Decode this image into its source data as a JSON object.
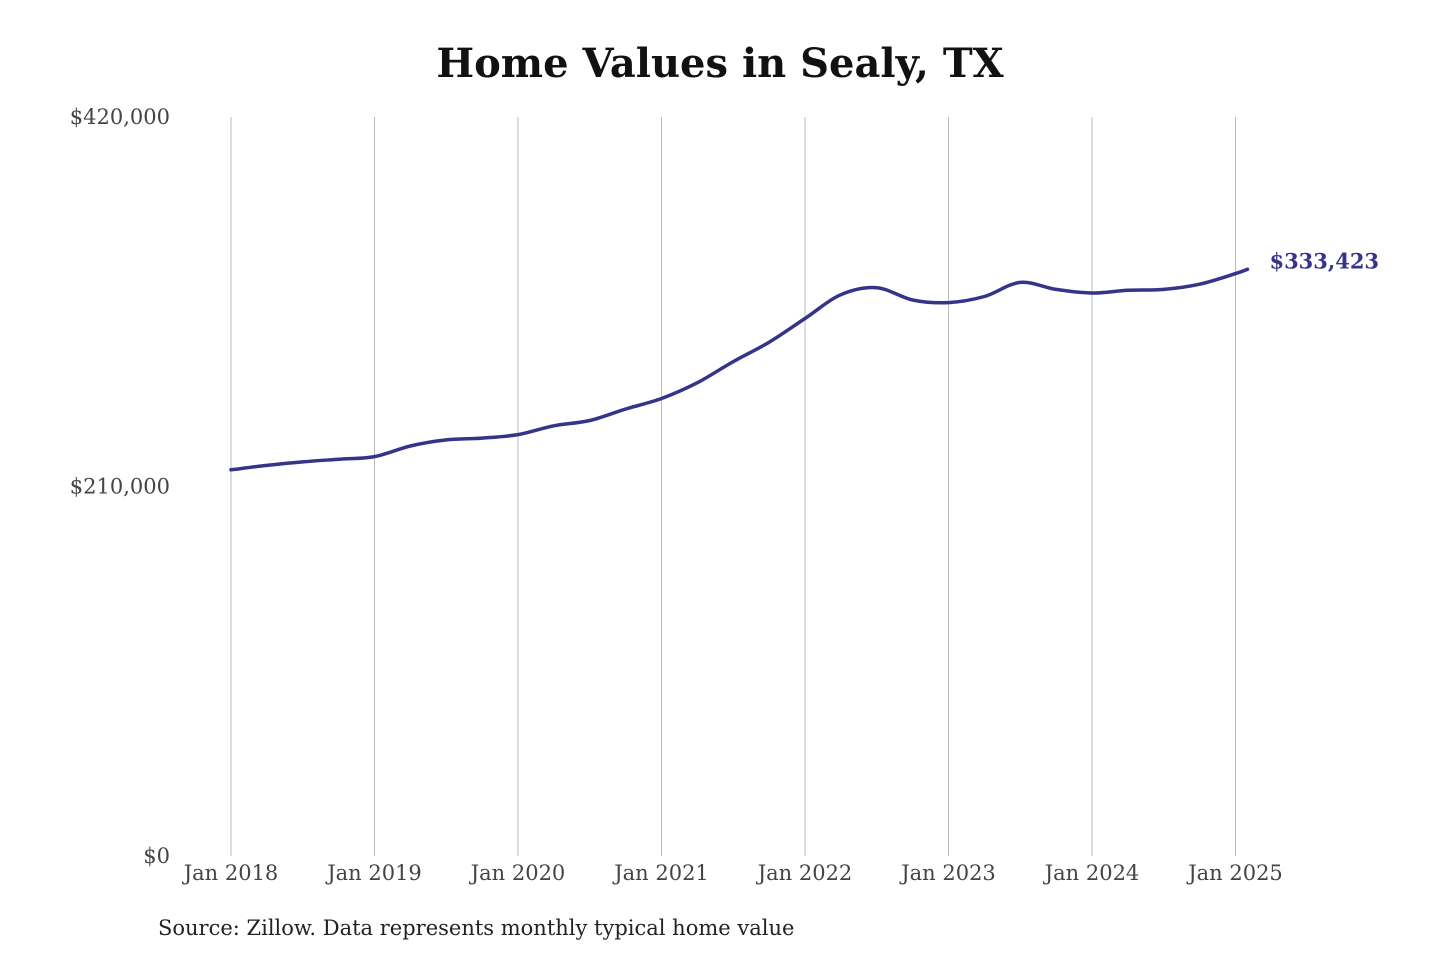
{
  "chart_data": {
    "type": "line",
    "title": "Home Values in Sealy, TX",
    "source": "Source: Zillow. Data represents monthly typical home value",
    "xlabel": "",
    "ylabel": "",
    "x_range": [
      "2018-01",
      "2025-02"
    ],
    "ylim": [
      0,
      420000
    ],
    "y_ticks": [
      {
        "value": 0,
        "label": "$0"
      },
      {
        "value": 210000,
        "label": "$210,000"
      },
      {
        "value": 420000,
        "label": "$420,000"
      }
    ],
    "x_ticks": [
      {
        "date": "2018-01",
        "label": "Jan 2018"
      },
      {
        "date": "2019-01",
        "label": "Jan 2019"
      },
      {
        "date": "2020-01",
        "label": "Jan 2020"
      },
      {
        "date": "2021-01",
        "label": "Jan 2021"
      },
      {
        "date": "2022-01",
        "label": "Jan 2022"
      },
      {
        "date": "2023-01",
        "label": "Jan 2023"
      },
      {
        "date": "2024-01",
        "label": "Jan 2024"
      },
      {
        "date": "2025-01",
        "label": "Jan 2025"
      }
    ],
    "grid": {
      "vertical": true,
      "horizontal": false
    },
    "line_color": "#35348a",
    "grid_color": "#bbbbbb",
    "end_label": "$333,423",
    "series": [
      {
        "points": [
          {
            "x": "2018-01",
            "y": 219500
          },
          {
            "x": "2018-04",
            "y": 222000
          },
          {
            "x": "2018-07",
            "y": 224000
          },
          {
            "x": "2018-10",
            "y": 225500
          },
          {
            "x": "2019-01",
            "y": 227000
          },
          {
            "x": "2019-04",
            "y": 233000
          },
          {
            "x": "2019-07",
            "y": 236500
          },
          {
            "x": "2019-10",
            "y": 237500
          },
          {
            "x": "2020-01",
            "y": 239500
          },
          {
            "x": "2020-04",
            "y": 244500
          },
          {
            "x": "2020-07",
            "y": 247500
          },
          {
            "x": "2020-10",
            "y": 254000
          },
          {
            "x": "2021-01",
            "y": 260000
          },
          {
            "x": "2021-04",
            "y": 269000
          },
          {
            "x": "2021-07",
            "y": 281000
          },
          {
            "x": "2021-10",
            "y": 292000
          },
          {
            "x": "2022-01",
            "y": 305500
          },
          {
            "x": "2022-04",
            "y": 319000
          },
          {
            "x": "2022-07",
            "y": 323000
          },
          {
            "x": "2022-10",
            "y": 316000
          },
          {
            "x": "2023-01",
            "y": 314500
          },
          {
            "x": "2023-04",
            "y": 318000
          },
          {
            "x": "2023-07",
            "y": 326000
          },
          {
            "x": "2023-10",
            "y": 322000
          },
          {
            "x": "2024-01",
            "y": 320000
          },
          {
            "x": "2024-04",
            "y": 321500
          },
          {
            "x": "2024-07",
            "y": 322000
          },
          {
            "x": "2024-10",
            "y": 325000
          },
          {
            "x": "2025-01",
            "y": 331000
          },
          {
            "x": "2025-02",
            "y": 333423
          }
        ]
      }
    ]
  }
}
